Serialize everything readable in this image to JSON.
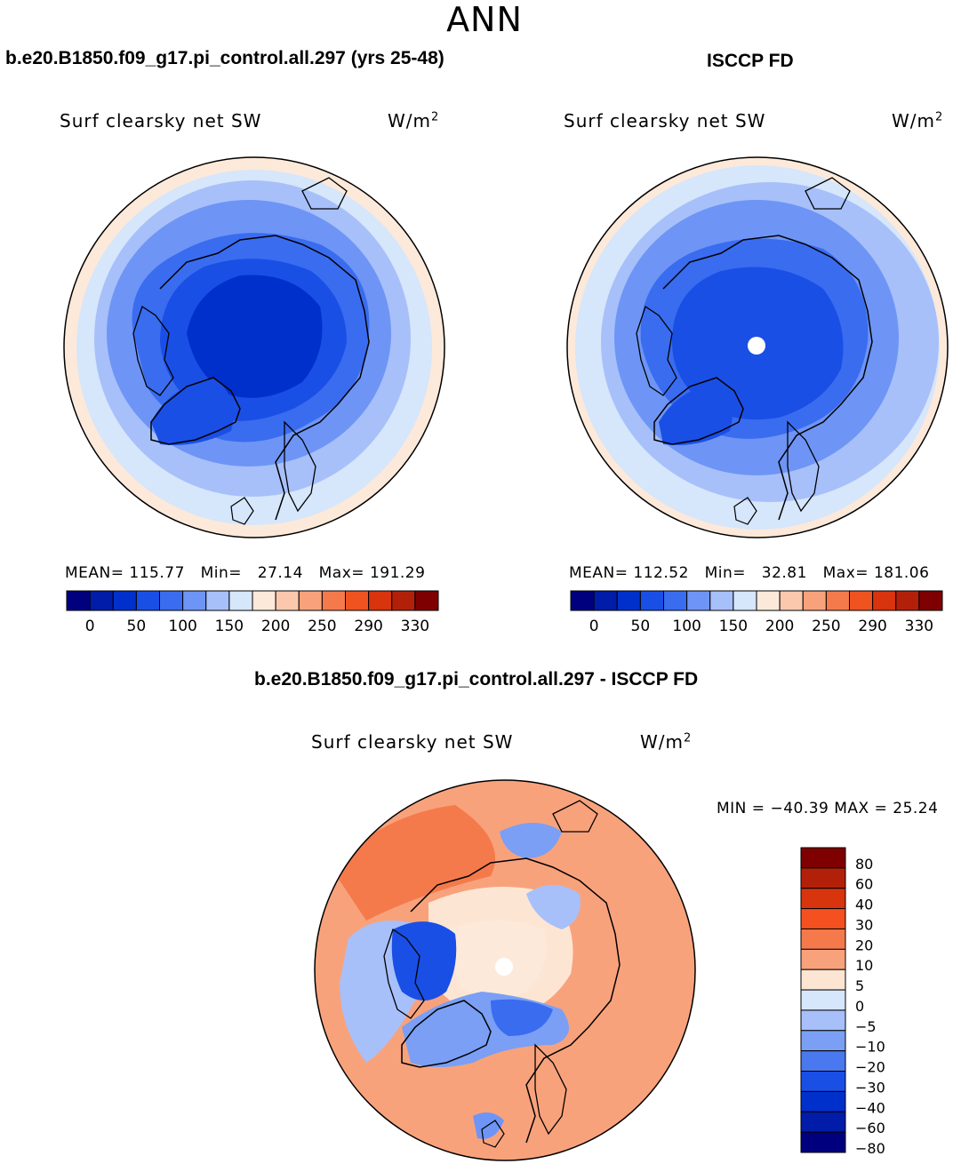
{
  "season_title": "ANN",
  "panels": [
    {
      "title": "b.e20.B1850.f09_g17.pi_control.all.297 (yrs 25-48)",
      "variable": "Surf clearsky net SW",
      "units": "W/m",
      "units_sup": "2",
      "stats": {
        "mean_label": "MEAN=",
        "mean": "115.77",
        "min_label": "Min=",
        "min": "27.14",
        "max_label": "Max=",
        "max": "191.29"
      },
      "pole_hole": false
    },
    {
      "title": "ISCCP FD",
      "variable": "Surf clearsky net SW",
      "units": "W/m",
      "units_sup": "2",
      "stats": {
        "mean_label": "MEAN=",
        "mean": "112.52",
        "min_label": "Min=",
        "min": "32.81",
        "max_label": "Max=",
        "max": "181.06"
      },
      "pole_hole": true
    }
  ],
  "diff_panel": {
    "title": "b.e20.B1850.f09_g17.pi_control.all.297 - ISCCP FD",
    "variable": "Surf clearsky net SW",
    "units": "W/m",
    "units_sup": "2",
    "minmax": "MIN = −40.39 MAX =  25.24"
  },
  "abs_colorbar": {
    "colors": [
      "#00007f",
      "#001ca8",
      "#0030cc",
      "#1a4fe6",
      "#3a6cf0",
      "#6e95f5",
      "#a7c0fa",
      "#d6e6fb",
      "#fde9da",
      "#fbc8ad",
      "#f8a27c",
      "#f57a4b",
      "#ee5320",
      "#d8340d",
      "#b3200a",
      "#7f0000"
    ],
    "labels": [
      "0",
      "50",
      "100",
      "150",
      "200",
      "250",
      "290",
      "330"
    ]
  },
  "diff_colorbar": {
    "colors": [
      "#7f0000",
      "#b3200a",
      "#d8340d",
      "#f55020",
      "#f57a4b",
      "#f8a27c",
      "#fde5d3",
      "#d6e6fb",
      "#a7c0fa",
      "#7a9ff5",
      "#4a78ef",
      "#1a4fe6",
      "#0030cc",
      "#001ca8",
      "#00007f"
    ],
    "labels": [
      "80",
      "60",
      "40",
      "30",
      "20",
      "10",
      "5",
      "0",
      "−5",
      "−10",
      "−20",
      "−30",
      "−40",
      "−60",
      "−80"
    ]
  }
}
